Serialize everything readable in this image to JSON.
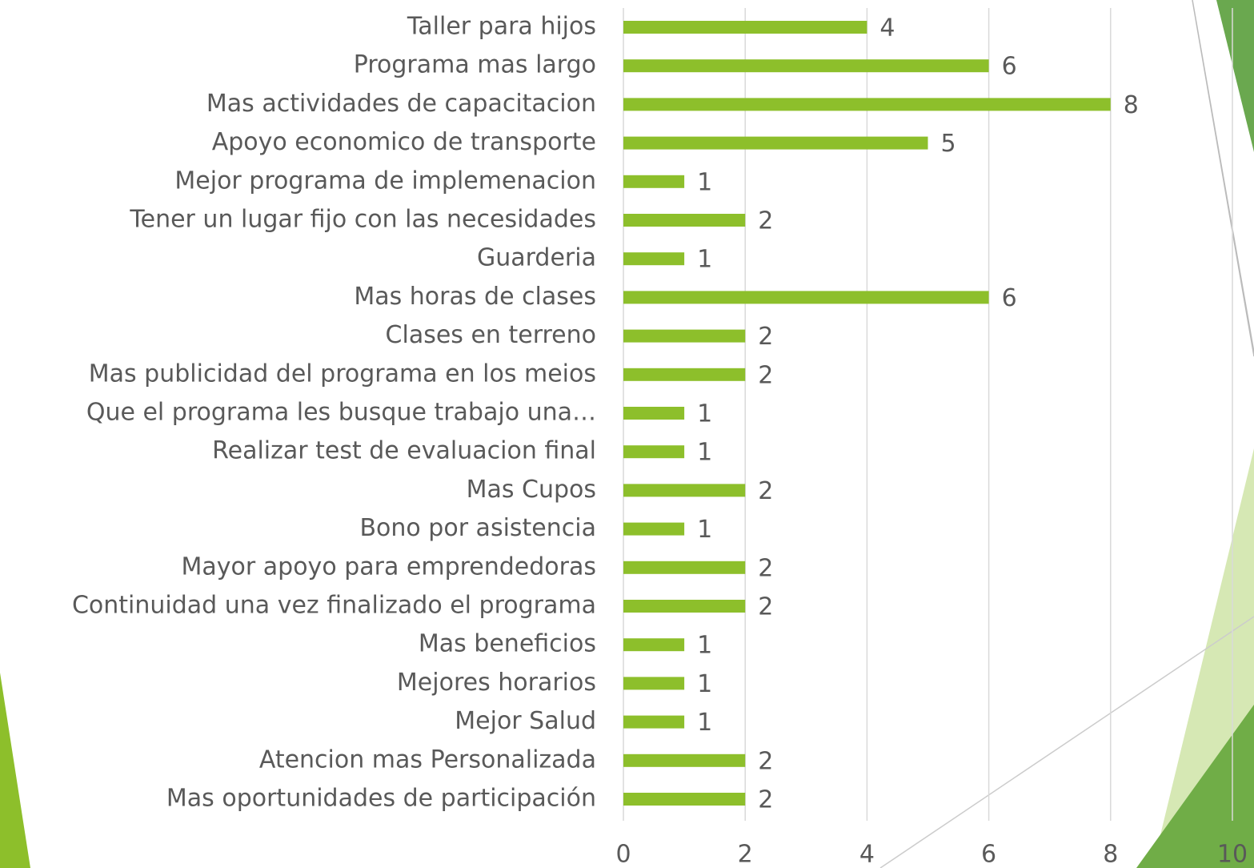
{
  "chart_data": {
    "type": "bar",
    "orientation": "horizontal",
    "categories": [
      "Taller para hijos",
      "Programa mas largo",
      "Mas actividades de capacitacion",
      "Apoyo economico de transporte",
      "Mejor programa de implemenacion",
      "Tener un lugar fijo con las necesidades",
      "Guarderia",
      "Mas horas de clases",
      "Clases en terreno",
      "Mas publicidad del programa en los meios",
      "Que el programa les busque trabajo una…",
      "Realizar test de evaluacion final",
      "Mas Cupos",
      "Bono por asistencia",
      "Mayor apoyo para emprendedoras",
      "Continuidad una vez finalizado el programa",
      "Mas beneficios",
      "Mejores horarios",
      "Mejor Salud",
      "Atencion mas Personalizada",
      "Mas oportunidades de participación"
    ],
    "values": [
      4,
      6,
      8,
      5,
      1,
      2,
      1,
      6,
      2,
      2,
      1,
      1,
      2,
      1,
      2,
      2,
      1,
      1,
      1,
      2,
      2
    ],
    "color": "#8dbf2b",
    "xlim": [
      0,
      10
    ],
    "xticks": [
      0,
      2,
      4,
      6,
      8,
      10
    ],
    "grid": true
  }
}
